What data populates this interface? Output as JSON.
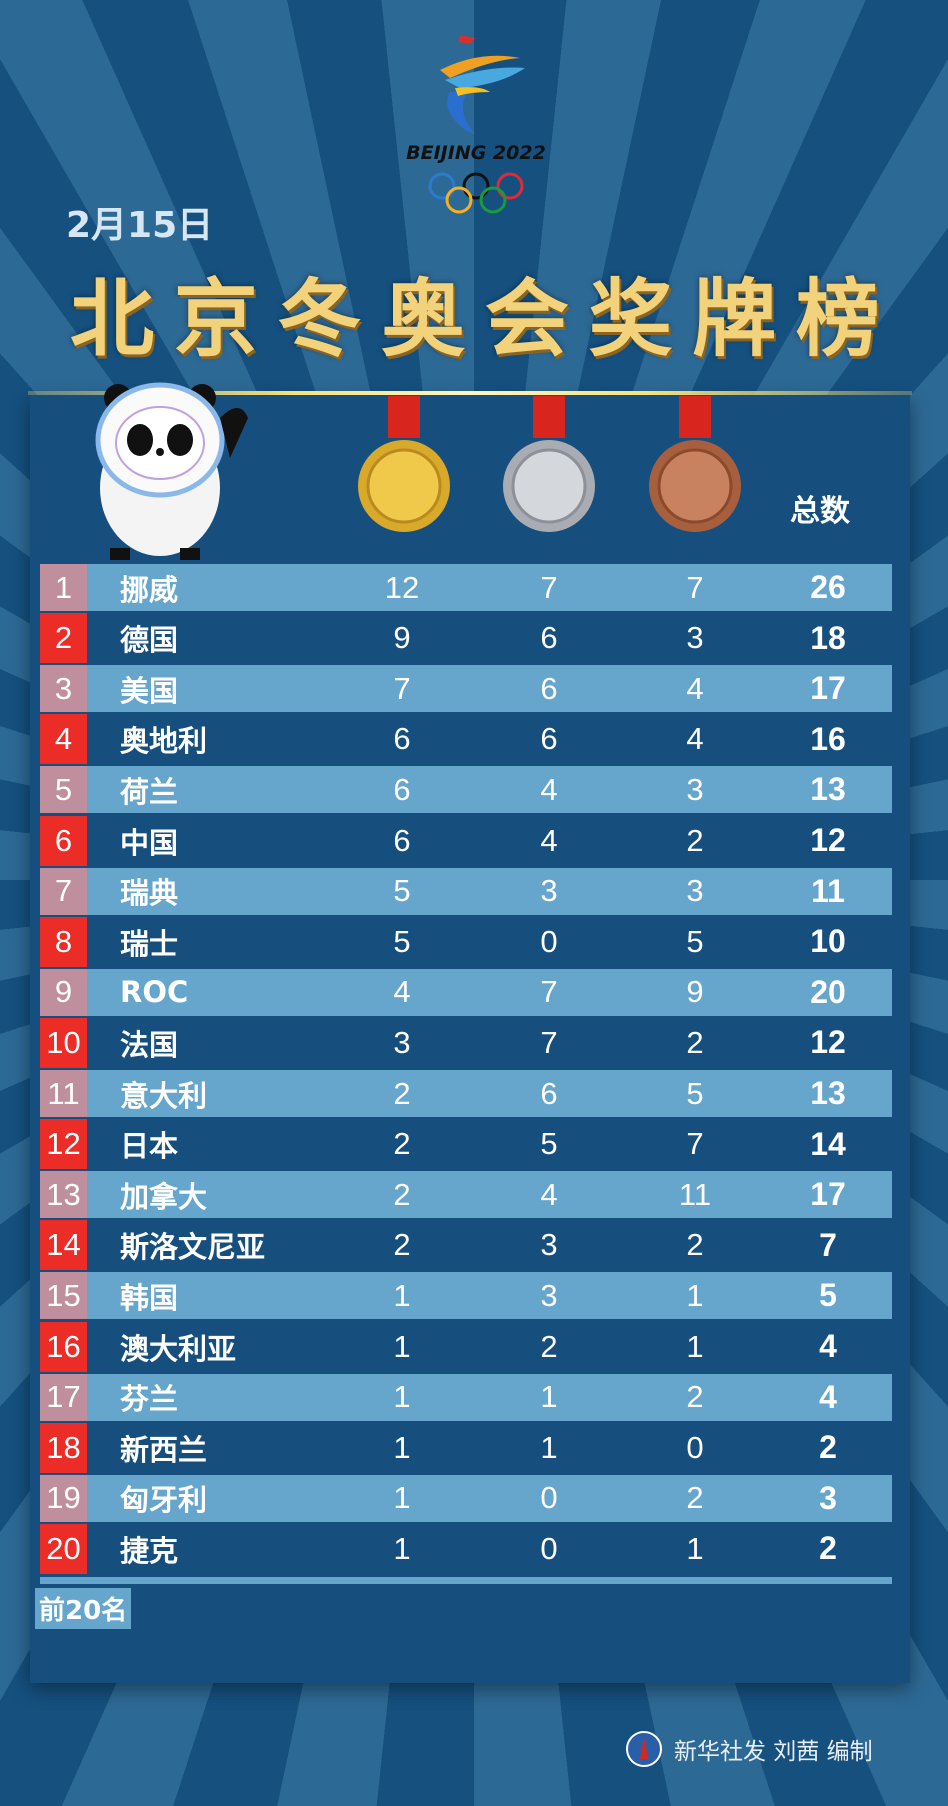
{
  "header": {
    "brand": "BEIJING 2022",
    "date": "2月15日",
    "title": "北京冬奥会奖牌榜"
  },
  "columns": {
    "gold": "gold-medal",
    "silver": "silver-medal",
    "bronze": "bronze-medal",
    "total": "总数"
  },
  "rows": [
    {
      "rank": "1",
      "name": "挪威",
      "gold": "12",
      "silver": "7",
      "bronze": "7",
      "total": "26"
    },
    {
      "rank": "2",
      "name": "德国",
      "gold": "9",
      "silver": "6",
      "bronze": "3",
      "total": "18"
    },
    {
      "rank": "3",
      "name": "美国",
      "gold": "7",
      "silver": "6",
      "bronze": "4",
      "total": "17"
    },
    {
      "rank": "4",
      "name": "奥地利",
      "gold": "6",
      "silver": "6",
      "bronze": "4",
      "total": "16"
    },
    {
      "rank": "5",
      "name": "荷兰",
      "gold": "6",
      "silver": "4",
      "bronze": "3",
      "total": "13"
    },
    {
      "rank": "6",
      "name": "中国",
      "gold": "6",
      "silver": "4",
      "bronze": "2",
      "total": "12"
    },
    {
      "rank": "7",
      "name": "瑞典",
      "gold": "5",
      "silver": "3",
      "bronze": "3",
      "total": "11"
    },
    {
      "rank": "8",
      "name": "瑞士",
      "gold": "5",
      "silver": "0",
      "bronze": "5",
      "total": "10"
    },
    {
      "rank": "9",
      "name": "ROC",
      "gold": "4",
      "silver": "7",
      "bronze": "9",
      "total": "20"
    },
    {
      "rank": "10",
      "name": "法国",
      "gold": "3",
      "silver": "7",
      "bronze": "2",
      "total": "12"
    },
    {
      "rank": "11",
      "name": "意大利",
      "gold": "2",
      "silver": "6",
      "bronze": "5",
      "total": "13"
    },
    {
      "rank": "12",
      "name": "日本",
      "gold": "2",
      "silver": "5",
      "bronze": "7",
      "total": "14"
    },
    {
      "rank": "13",
      "name": "加拿大",
      "gold": "2",
      "silver": "4",
      "bronze": "11",
      "total": "17"
    },
    {
      "rank": "14",
      "name": "斯洛文尼亚",
      "gold": "2",
      "silver": "3",
      "bronze": "2",
      "total": "7"
    },
    {
      "rank": "15",
      "name": "韩国",
      "gold": "1",
      "silver": "3",
      "bronze": "1",
      "total": "5"
    },
    {
      "rank": "16",
      "name": "澳大利亚",
      "gold": "1",
      "silver": "2",
      "bronze": "1",
      "total": "4"
    },
    {
      "rank": "17",
      "name": "芬兰",
      "gold": "1",
      "silver": "1",
      "bronze": "2",
      "total": "4"
    },
    {
      "rank": "18",
      "name": "新西兰",
      "gold": "1",
      "silver": "1",
      "bronze": "0",
      "total": "2"
    },
    {
      "rank": "19",
      "name": "匈牙利",
      "gold": "1",
      "silver": "0",
      "bronze": "2",
      "total": "3"
    },
    {
      "rank": "20",
      "name": "捷克",
      "gold": "1",
      "silver": "0",
      "bronze": "1",
      "total": "2"
    }
  ],
  "note": "前20名",
  "footer": {
    "credit": "新华社发 刘茜 编制"
  },
  "colors": {
    "background": "#15507f",
    "ray": "#2d6995",
    "light_row": "#66a5cc",
    "rank_odd": "#c08f9e",
    "rank_even": "#ec2c27",
    "title_gold": "#f2d27a"
  }
}
